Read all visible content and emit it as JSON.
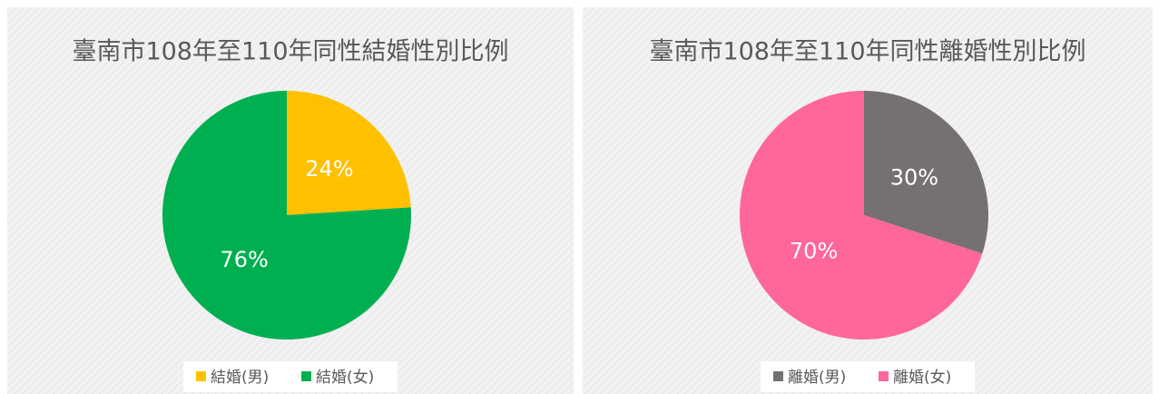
{
  "chart_data": [
    {
      "type": "pie",
      "title": "臺南市108年至110年同性結婚性別比例",
      "categories": [
        "結婚(男)",
        "結婚(女)"
      ],
      "values": [
        24,
        76
      ],
      "value_labels": [
        "24%",
        "76%"
      ],
      "colors": [
        "#FFC000",
        "#00B050"
      ],
      "legend": "bottom"
    },
    {
      "type": "pie",
      "title": "臺南市108年至110年同性離婚性別比例",
      "categories": [
        "離婚(男)",
        "離婚(女)"
      ],
      "values": [
        30,
        70
      ],
      "value_labels": [
        "30%",
        "70%"
      ],
      "colors": [
        "#767171",
        "#FF6699"
      ],
      "legend": "bottom"
    }
  ]
}
